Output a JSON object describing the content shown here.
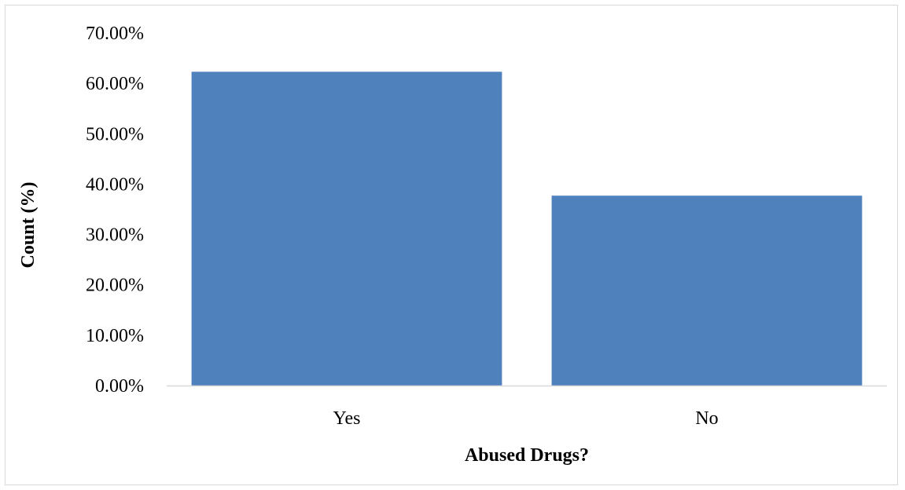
{
  "chart_data": {
    "type": "bar",
    "title": "",
    "xlabel": "Abused Drugs?",
    "ylabel": "Count (%)",
    "categories": [
      "Yes",
      "No"
    ],
    "values": [
      62.3,
      37.7
    ],
    "ylim": [
      0,
      70
    ],
    "yticks": [
      0,
      10,
      20,
      30,
      40,
      50,
      60,
      70
    ],
    "ytick_labels": [
      "0.00%",
      "10.00%",
      "20.00%",
      "30.00%",
      "40.00%",
      "50.00%",
      "60.00%",
      "70.00%"
    ],
    "grid": false,
    "legend": "none",
    "bar_color": "#4f81bd",
    "axis_color": "#d9d9d9"
  }
}
